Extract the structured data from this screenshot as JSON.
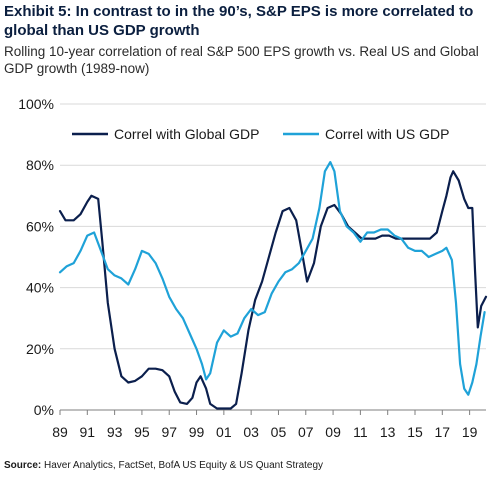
{
  "header": {
    "title": "Exhibit 5: In contrast to in the 90’s, S&P EPS is more correlated to global than US GDP growth",
    "subtitle": "Rolling 10-year correlation of real S&P 500 EPS growth vs. Real US and Global GDP growth (1989-now)"
  },
  "footer": {
    "source_label": "Source:",
    "source_text": "Haver Analytics, FactSet, BofA US Equity & US Quant Strategy"
  },
  "chart_data": {
    "type": "line",
    "title": "Exhibit 5: In contrast to in the 90’s, S&P EPS is more correlated to global than US GDP growth",
    "subtitle": "Rolling 10-year correlation of real S&P 500 EPS growth vs. Real US and Global GDP growth (1989-now)",
    "xlabel": "",
    "ylabel": "",
    "xlim": [
      1989,
      2020.2
    ],
    "ylim": [
      0,
      100
    ],
    "x_ticks": [
      1989,
      1991,
      1993,
      1995,
      1997,
      1999,
      2001,
      2003,
      2005,
      2007,
      2009,
      2011,
      2013,
      2015,
      2017,
      2019
    ],
    "x_tick_labels": [
      "89",
      "91",
      "93",
      "95",
      "97",
      "99",
      "01",
      "03",
      "05",
      "07",
      "09",
      "11",
      "13",
      "15",
      "17",
      "19"
    ],
    "y_ticks": [
      0,
      20,
      40,
      60,
      80,
      100
    ],
    "y_tick_labels": [
      "0%",
      "20%",
      "40%",
      "60%",
      "80%",
      "100%"
    ],
    "grid": "horizontal",
    "legend_position": "top",
    "colors": {
      "global": "#0b1f4d",
      "us": "#1fa2d8",
      "grid": "#d9d9d9"
    },
    "series": [
      {
        "name": "Correl with Global GDP",
        "color": "#0b1f4d",
        "points": [
          [
            1989.0,
            65
          ],
          [
            1989.4,
            62
          ],
          [
            1990.0,
            62
          ],
          [
            1990.5,
            64
          ],
          [
            1991.0,
            68
          ],
          [
            1991.3,
            70
          ],
          [
            1991.8,
            69
          ],
          [
            1992.1,
            55
          ],
          [
            1992.5,
            35
          ],
          [
            1993.0,
            20
          ],
          [
            1993.5,
            11
          ],
          [
            1994.0,
            9
          ],
          [
            1994.5,
            9.5
          ],
          [
            1995.0,
            11
          ],
          [
            1995.5,
            13.5
          ],
          [
            1996.0,
            13.5
          ],
          [
            1996.5,
            13
          ],
          [
            1997.0,
            11
          ],
          [
            1997.4,
            6
          ],
          [
            1997.8,
            2.5
          ],
          [
            1998.3,
            2
          ],
          [
            1998.7,
            4
          ],
          [
            1999.0,
            9
          ],
          [
            1999.3,
            11
          ],
          [
            1999.7,
            7
          ],
          [
            2000.0,
            2
          ],
          [
            2000.5,
            0.5
          ],
          [
            2001.0,
            0.5
          ],
          [
            2001.5,
            0.5
          ],
          [
            2001.9,
            2
          ],
          [
            2002.3,
            12
          ],
          [
            2002.8,
            26
          ],
          [
            2003.3,
            36
          ],
          [
            2003.8,
            42
          ],
          [
            2004.3,
            50
          ],
          [
            2004.8,
            58
          ],
          [
            2005.3,
            65
          ],
          [
            2005.8,
            66
          ],
          [
            2006.3,
            62
          ],
          [
            2006.7,
            52
          ],
          [
            2007.1,
            42
          ],
          [
            2007.6,
            48
          ],
          [
            2008.1,
            60
          ],
          [
            2008.6,
            66
          ],
          [
            2009.1,
            67
          ],
          [
            2009.6,
            64
          ],
          [
            2010.1,
            60
          ],
          [
            2010.6,
            58
          ],
          [
            2011.1,
            56
          ],
          [
            2011.6,
            56
          ],
          [
            2012.1,
            56
          ],
          [
            2012.6,
            57
          ],
          [
            2013.1,
            57
          ],
          [
            2013.6,
            56
          ],
          [
            2014.1,
            56
          ],
          [
            2014.6,
            56
          ],
          [
            2015.1,
            56
          ],
          [
            2015.6,
            56
          ],
          [
            2016.1,
            56
          ],
          [
            2016.6,
            58
          ],
          [
            2017.0,
            65
          ],
          [
            2017.3,
            70
          ],
          [
            2017.6,
            76
          ],
          [
            2017.8,
            78
          ],
          [
            2018.2,
            75
          ],
          [
            2018.6,
            69
          ],
          [
            2018.9,
            66
          ],
          [
            2019.2,
            66
          ],
          [
            2019.4,
            45
          ],
          [
            2019.6,
            27
          ],
          [
            2019.85,
            34
          ],
          [
            2020.2,
            37
          ]
        ]
      },
      {
        "name": "Correl with US GDP",
        "color": "#1fa2d8",
        "points": [
          [
            1989.0,
            45
          ],
          [
            1989.5,
            47
          ],
          [
            1990.0,
            48
          ],
          [
            1990.5,
            52
          ],
          [
            1991.0,
            57
          ],
          [
            1991.5,
            58
          ],
          [
            1992.0,
            52
          ],
          [
            1992.5,
            46
          ],
          [
            1993.0,
            44
          ],
          [
            1993.5,
            43
          ],
          [
            1994.0,
            41
          ],
          [
            1994.5,
            46
          ],
          [
            1995.0,
            52
          ],
          [
            1995.5,
            51
          ],
          [
            1996.0,
            48
          ],
          [
            1996.5,
            43
          ],
          [
            1997.0,
            37
          ],
          [
            1997.5,
            33
          ],
          [
            1998.0,
            30
          ],
          [
            1998.5,
            25
          ],
          [
            1999.0,
            20
          ],
          [
            1999.4,
            15
          ],
          [
            1999.7,
            10
          ],
          [
            2000.0,
            12
          ],
          [
            2000.5,
            22
          ],
          [
            2001.0,
            26
          ],
          [
            2001.5,
            24
          ],
          [
            2002.0,
            25
          ],
          [
            2002.5,
            30
          ],
          [
            2003.0,
            33
          ],
          [
            2003.5,
            31
          ],
          [
            2004.0,
            32
          ],
          [
            2004.5,
            38
          ],
          [
            2005.0,
            42
          ],
          [
            2005.5,
            45
          ],
          [
            2006.0,
            46
          ],
          [
            2006.5,
            48
          ],
          [
            2007.0,
            52
          ],
          [
            2007.5,
            56
          ],
          [
            2008.0,
            66
          ],
          [
            2008.4,
            78
          ],
          [
            2008.8,
            81
          ],
          [
            2009.1,
            78
          ],
          [
            2009.5,
            65
          ],
          [
            2010.0,
            60
          ],
          [
            2010.5,
            58
          ],
          [
            2011.0,
            55
          ],
          [
            2011.5,
            58
          ],
          [
            2012.0,
            58
          ],
          [
            2012.5,
            59
          ],
          [
            2013.0,
            59
          ],
          [
            2013.5,
            57
          ],
          [
            2014.0,
            56
          ],
          [
            2014.5,
            53
          ],
          [
            2015.0,
            52
          ],
          [
            2015.5,
            52
          ],
          [
            2016.0,
            50
          ],
          [
            2016.5,
            51
          ],
          [
            2017.0,
            52
          ],
          [
            2017.3,
            53
          ],
          [
            2017.7,
            49
          ],
          [
            2018.0,
            35
          ],
          [
            2018.3,
            15
          ],
          [
            2018.6,
            7
          ],
          [
            2018.9,
            5
          ],
          [
            2019.2,
            9
          ],
          [
            2019.5,
            15
          ],
          [
            2019.8,
            24
          ],
          [
            2020.1,
            32
          ]
        ]
      }
    ]
  }
}
